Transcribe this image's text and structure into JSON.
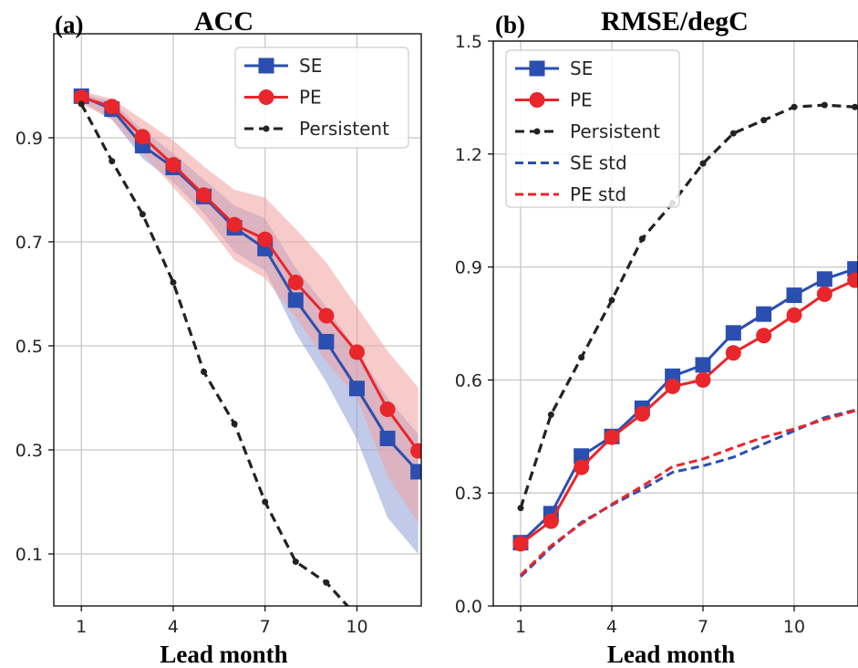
{
  "colors": {
    "se": "#2b4fb0",
    "pe": "#e8262b",
    "persistent": "#222222",
    "se_band": "#8e9fd6",
    "pe_band": "#f2a0a0",
    "grid": "#c8c8c8"
  },
  "chart_data": [
    {
      "type": "line",
      "panel_tag": "(a)",
      "title": "ACC",
      "xlabel": "Lead month",
      "ylabel": "",
      "xlim": [
        0.1,
        12.1
      ],
      "ylim": [
        0.0,
        1.1
      ],
      "x_ticks": [
        1,
        4,
        7,
        10
      ],
      "x_tick_labels": [
        "1",
        "4",
        "7",
        "10"
      ],
      "y_ticks": [
        0.1,
        0.3,
        0.5,
        0.7,
        0.9
      ],
      "y_tick_labels": [
        "0.1",
        "0.3",
        "0.5",
        "0.7",
        "0.9"
      ],
      "grid": true,
      "legend_position": "top-right",
      "x": [
        1,
        2,
        3,
        4,
        5,
        6,
        7,
        8,
        9,
        10,
        11,
        12
      ],
      "series": [
        {
          "name": "SE",
          "style": "se",
          "marker": "square",
          "values": [
            0.98,
            0.955,
            0.885,
            0.843,
            0.787,
            0.727,
            0.687,
            0.588,
            0.508,
            0.418,
            0.322,
            0.258
          ],
          "band": {
            "upper": [
              0.985,
              0.97,
              0.915,
              0.87,
              0.82,
              0.77,
              0.745,
              0.65,
              0.575,
              0.49,
              0.4,
              0.33
            ],
            "lower": [
              0.97,
              0.935,
              0.86,
              0.815,
              0.755,
              0.68,
              0.645,
              0.525,
              0.43,
              0.32,
              0.17,
              0.1
            ]
          }
        },
        {
          "name": "PE",
          "style": "pe",
          "marker": "circle",
          "values": [
            0.978,
            0.96,
            0.902,
            0.848,
            0.79,
            0.733,
            0.705,
            0.622,
            0.558,
            0.488,
            0.378,
            0.298
          ],
          "band": {
            "upper": [
              0.99,
              0.975,
              0.935,
              0.895,
              0.845,
              0.8,
              0.785,
              0.725,
              0.66,
              0.575,
              0.49,
              0.42
            ],
            "lower": [
              0.965,
              0.935,
              0.87,
              0.805,
              0.74,
              0.665,
              0.63,
              0.555,
              0.47,
              0.4,
              0.25,
              0.16
            ]
          }
        },
        {
          "name": "Persistent",
          "style": "persistent",
          "marker": "dot",
          "dashed": true,
          "values": [
            0.965,
            0.855,
            0.753,
            0.622,
            0.45,
            0.35,
            0.2,
            0.085,
            0.045,
            -0.02,
            null,
            null
          ]
        }
      ]
    },
    {
      "type": "line",
      "panel_tag": "(b)",
      "title": "RMSE/degC",
      "xlabel": "Lead month",
      "ylabel": "",
      "xlim": [
        0.1,
        12.1
      ],
      "ylim": [
        0.0,
        1.5
      ],
      "x_ticks": [
        1,
        4,
        7,
        10
      ],
      "x_tick_labels": [
        "1",
        "4",
        "7",
        "10"
      ],
      "y_ticks": [
        0.0,
        0.3,
        0.6,
        0.9,
        1.2,
        1.5
      ],
      "y_tick_labels": [
        "0.0",
        "0.3",
        "0.6",
        "0.9",
        "1.2",
        "1.5"
      ],
      "grid": true,
      "legend_position": "top-left",
      "x": [
        1,
        2,
        3,
        4,
        5,
        6,
        7,
        8,
        9,
        10,
        11,
        12
      ],
      "series": [
        {
          "name": "SE",
          "style": "se",
          "marker": "square",
          "values": [
            0.168,
            0.245,
            0.398,
            0.45,
            0.525,
            0.61,
            0.64,
            0.725,
            0.775,
            0.825,
            0.868,
            0.895
          ]
        },
        {
          "name": "PE",
          "style": "pe",
          "marker": "circle",
          "values": [
            0.165,
            0.225,
            0.368,
            0.448,
            0.51,
            0.583,
            0.6,
            0.672,
            0.718,
            0.772,
            0.828,
            0.865
          ]
        },
        {
          "name": "Persistent",
          "style": "persistent",
          "marker": "dot",
          "dashed": true,
          "values": [
            0.26,
            0.508,
            0.66,
            0.812,
            0.975,
            1.07,
            1.175,
            1.255,
            1.29,
            1.325,
            1.33,
            1.325
          ]
        },
        {
          "name": "SE std",
          "style": "se",
          "marker": "none",
          "dashed": true,
          "values": [
            0.078,
            0.155,
            0.222,
            0.268,
            0.31,
            0.355,
            0.372,
            0.395,
            0.43,
            0.465,
            0.5,
            0.52
          ]
        },
        {
          "name": "PE std",
          "style": "pe",
          "marker": "none",
          "dashed": true,
          "values": [
            0.082,
            0.16,
            0.218,
            0.27,
            0.318,
            0.37,
            0.39,
            0.42,
            0.448,
            0.47,
            0.495,
            0.518
          ]
        }
      ]
    }
  ]
}
